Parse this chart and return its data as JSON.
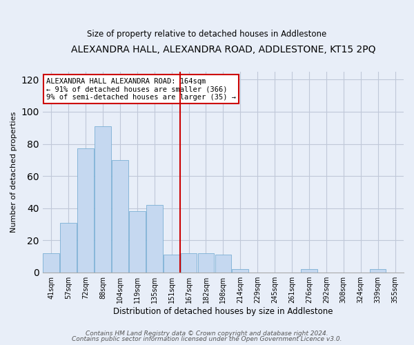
{
  "title": "ALEXANDRA HALL, ALEXANDRA ROAD, ADDLESTONE, KT15 2PQ",
  "subtitle": "Size of property relative to detached houses in Addlestone",
  "xlabel": "Distribution of detached houses by size in Addlestone",
  "ylabel": "Number of detached properties",
  "categories": [
    "41sqm",
    "57sqm",
    "72sqm",
    "88sqm",
    "104sqm",
    "119sqm",
    "135sqm",
    "151sqm",
    "167sqm",
    "182sqm",
    "198sqm",
    "214sqm",
    "229sqm",
    "245sqm",
    "261sqm",
    "276sqm",
    "292sqm",
    "308sqm",
    "324sqm",
    "339sqm",
    "355sqm"
  ],
  "values": [
    12,
    31,
    77,
    91,
    70,
    38,
    42,
    11,
    12,
    12,
    11,
    2,
    0,
    0,
    0,
    2,
    0,
    0,
    0,
    2,
    0
  ],
  "bar_color": "#c5d8f0",
  "bar_edge_color": "#7aafd4",
  "vline_x_index": 8,
  "vline_color": "#cc0000",
  "annotation_title": "ALEXANDRA HALL ALEXANDRA ROAD: 164sqm",
  "annotation_line1": "← 91% of detached houses are smaller (366)",
  "annotation_line2": "9% of semi-detached houses are larger (35) →",
  "annotation_box_color": "white",
  "annotation_box_edge": "#cc0000",
  "ylim": [
    0,
    125
  ],
  "yticks": [
    0,
    20,
    40,
    60,
    80,
    100,
    120
  ],
  "footer1": "Contains HM Land Registry data © Crown copyright and database right 2024.",
  "footer2": "Contains public sector information licensed under the Open Government Licence v3.0.",
  "bg_color": "#e8eef8",
  "plot_bg_color": "#e8eef8",
  "grid_color": "#c0c8d8"
}
